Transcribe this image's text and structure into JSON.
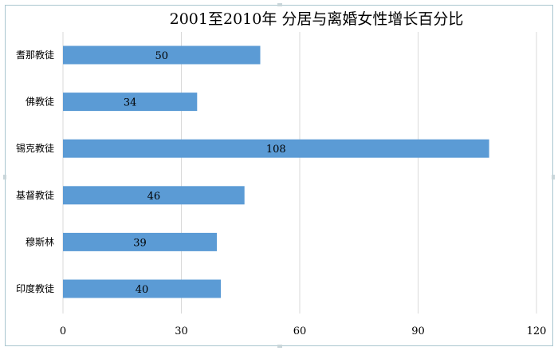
{
  "chart_data": {
    "type": "bar",
    "orientation": "horizontal",
    "title": "2001至2010年 分居与离婚女性增长百分比",
    "categories": [
      "耆那教徒",
      "佛教徒",
      "锡克教徒",
      "基督教徒",
      "穆斯林",
      "印度教徒"
    ],
    "values": [
      50,
      34,
      108,
      46,
      39,
      40
    ],
    "data_labels": [
      "50",
      "34",
      "108",
      "46",
      "39",
      "40"
    ],
    "xlim": [
      0,
      120
    ],
    "xticks": [
      0,
      30,
      60,
      90,
      120
    ],
    "xtick_labels": [
      "0",
      "30",
      "60",
      "90",
      "120"
    ],
    "xlabel": "",
    "ylabel": "",
    "grid": "vertical",
    "legend": "none",
    "bar_color": "#5b9bd5",
    "grid_color": "#d9d9d9"
  }
}
